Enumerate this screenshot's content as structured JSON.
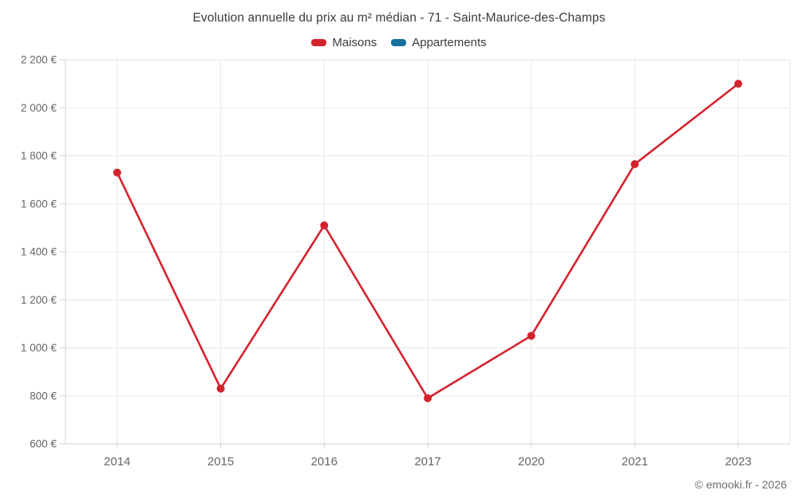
{
  "chart_data": {
    "type": "line",
    "title": "Evolution annuelle du prix au m² médian - 71 - Saint-Maurice-des-Champs",
    "categories": [
      "2014",
      "2015",
      "2016",
      "2017",
      "2020",
      "2021",
      "2023"
    ],
    "series": [
      {
        "name": "Maisons",
        "color": "#d5232e",
        "values": [
          1730,
          830,
          1510,
          790,
          1050,
          1765,
          2100
        ]
      },
      {
        "name": "Appartements",
        "color": "#16719e",
        "values": []
      }
    ],
    "ylim": [
      600,
      2200
    ],
    "ytick_step": 200,
    "ytick_labels": [
      "600 €",
      "800 €",
      "1 000 €",
      "1 200 €",
      "1 400 €",
      "1 600 €",
      "1 800 €",
      "2 000 €",
      "2 200 €"
    ],
    "grid": true,
    "legend_position": "top",
    "xlabel": "",
    "ylabel": ""
  },
  "colors": {
    "grid_line": "#e7e7e7",
    "axis_line": "#d2d2d2",
    "tick_label": "#666666",
    "title_text": "#3b3b3b"
  },
  "credit": "© emooki.fr - 2026"
}
